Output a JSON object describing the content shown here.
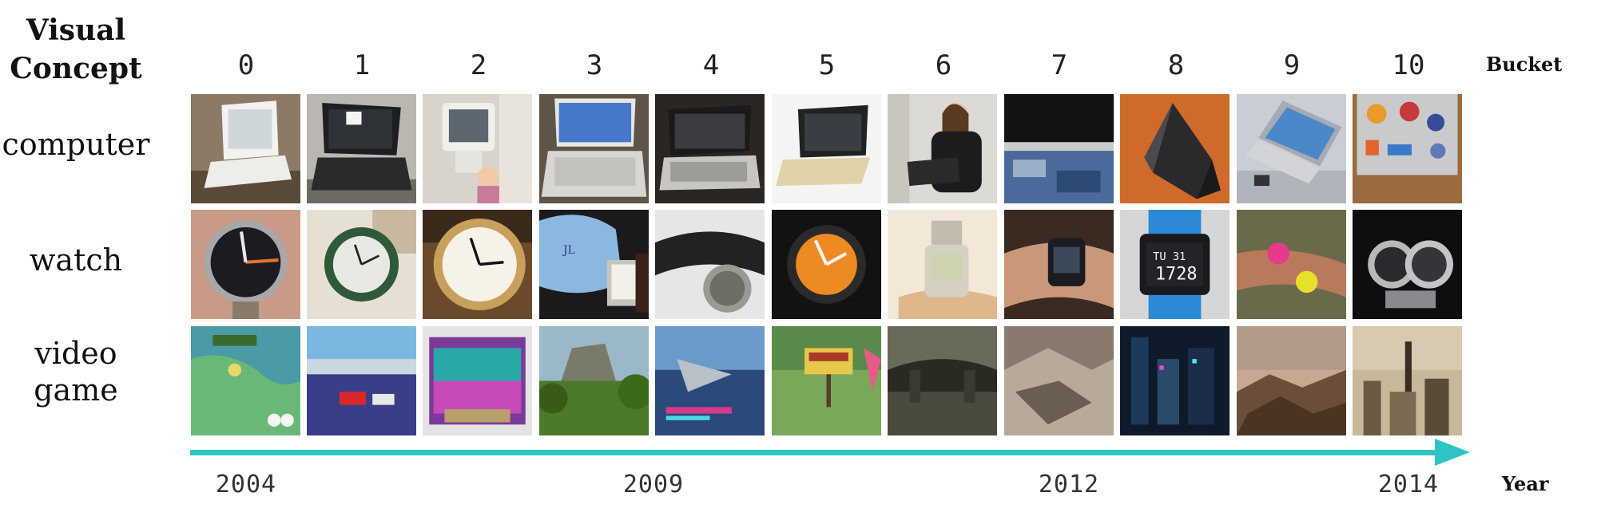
{
  "header": {
    "concept_line1": "Visual",
    "concept_line2": "Concept",
    "bucket_label": "Bucket",
    "year_label": "Year"
  },
  "buckets": [
    "0",
    "1",
    "2",
    "3",
    "4",
    "5",
    "6",
    "7",
    "8",
    "9",
    "10"
  ],
  "rows": [
    {
      "label_lines": [
        "computer"
      ]
    },
    {
      "label_lines": [
        "watch"
      ]
    },
    {
      "label_lines": [
        "video",
        "game"
      ]
    }
  ],
  "years": [
    "2004",
    "2009",
    "2012",
    "2014"
  ],
  "colors": {
    "timeline": "#2ec4c4"
  }
}
